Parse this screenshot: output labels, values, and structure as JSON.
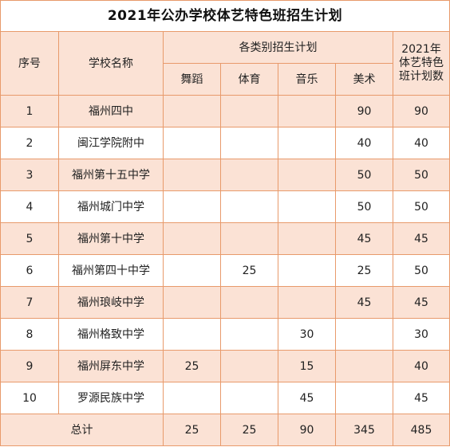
{
  "title": "2021年公办学校体艺特色班招生计划",
  "colors": {
    "border": "#e89a6b",
    "shade": "#fbe2d5"
  },
  "headers": {
    "seq": "序号",
    "school": "学校名称",
    "category_group": "各类别招生计划",
    "dance": "舞蹈",
    "sports": "体育",
    "music": "音乐",
    "art": "美术",
    "total_plan": "2021年体艺特色班计划数"
  },
  "rows": [
    {
      "seq": "1",
      "school": "福州四中",
      "dance": "",
      "sports": "",
      "music": "",
      "art": "90",
      "total": "90"
    },
    {
      "seq": "2",
      "school": "闽江学院附中",
      "dance": "",
      "sports": "",
      "music": "",
      "art": "40",
      "total": "40"
    },
    {
      "seq": "3",
      "school": "福州第十五中学",
      "dance": "",
      "sports": "",
      "music": "",
      "art": "50",
      "total": "50"
    },
    {
      "seq": "4",
      "school": "福州城门中学",
      "dance": "",
      "sports": "",
      "music": "",
      "art": "50",
      "total": "50"
    },
    {
      "seq": "5",
      "school": "福州第十中学",
      "dance": "",
      "sports": "",
      "music": "",
      "art": "45",
      "total": "45"
    },
    {
      "seq": "6",
      "school": "福州第四十中学",
      "dance": "",
      "sports": "25",
      "music": "",
      "art": "25",
      "total": "50"
    },
    {
      "seq": "7",
      "school": "福州琅岐中学",
      "dance": "",
      "sports": "",
      "music": "",
      "art": "45",
      "total": "45"
    },
    {
      "seq": "8",
      "school": "福州格致中学",
      "dance": "",
      "sports": "",
      "music": "30",
      "art": "",
      "total": "30"
    },
    {
      "seq": "9",
      "school": "福州屏东中学",
      "dance": "25",
      "sports": "",
      "music": "15",
      "art": "",
      "total": "40"
    },
    {
      "seq": "10",
      "school": "罗源民族中学",
      "dance": "",
      "sports": "",
      "music": "45",
      "art": "",
      "total": "45"
    }
  ],
  "summary": {
    "label": "总计",
    "dance": "25",
    "sports": "25",
    "music": "90",
    "art": "345",
    "total": "485"
  }
}
